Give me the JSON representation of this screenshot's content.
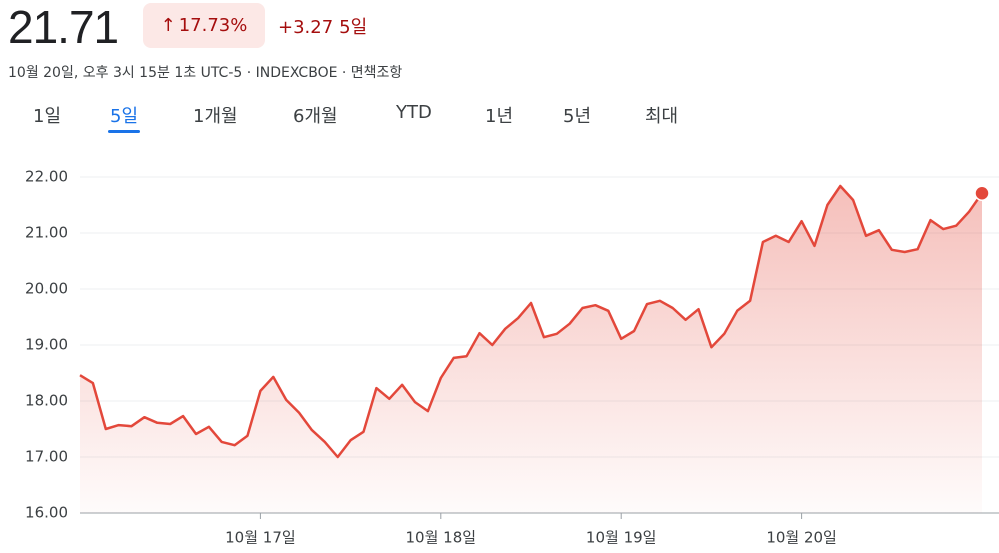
{
  "header": {
    "price": "21.71",
    "change_percent": "17.73%",
    "change": "+3.27",
    "period": "5일",
    "subtitle": "10월 20일, 오후 3시 15분 1초 UTC-5 · INDEXCBOE · 면책조항"
  },
  "tabs": {
    "items": [
      "1일",
      "5일",
      "1개월",
      "6개월",
      "YTD",
      "1년",
      "5년",
      "최대"
    ],
    "selected": 1
  },
  "chart_data": {
    "type": "line",
    "color": "#e3483b",
    "grid": true,
    "categories": [
      null,
      null,
      null,
      null,
      null,
      null,
      null,
      null,
      null,
      null,
      null,
      null,
      null,
      null,
      "10월 17일",
      null,
      null,
      null,
      null,
      null,
      null,
      null,
      null,
      null,
      null,
      null,
      null,
      null,
      "10월 18일",
      null,
      null,
      null,
      null,
      null,
      null,
      null,
      null,
      null,
      null,
      null,
      null,
      null,
      "10월 19일",
      null,
      null,
      null,
      null,
      null,
      null,
      null,
      null,
      null,
      null,
      null,
      null,
      null,
      "10월 20일",
      null,
      null,
      null,
      null,
      null,
      null,
      null,
      null,
      null,
      null,
      null,
      null,
      null,
      null
    ],
    "values": [
      18.46,
      18.32,
      17.5,
      17.57,
      17.55,
      17.71,
      17.61,
      17.59,
      17.73,
      17.41,
      17.54,
      17.27,
      17.21,
      17.38,
      18.18,
      18.43,
      18.02,
      17.79,
      17.48,
      17.27,
      17.0,
      17.3,
      17.45,
      18.23,
      18.04,
      18.29,
      17.98,
      17.82,
      18.41,
      18.77,
      18.8,
      19.21,
      19.0,
      19.29,
      19.48,
      19.75,
      19.14,
      19.2,
      19.38,
      19.66,
      19.71,
      19.61,
      19.11,
      19.25,
      19.73,
      19.79,
      19.66,
      19.45,
      19.64,
      18.96,
      19.2,
      19.61,
      19.79,
      20.84,
      20.95,
      20.84,
      21.21,
      20.77,
      21.5,
      21.84,
      21.59,
      20.95,
      21.05,
      20.7,
      20.66,
      20.71,
      21.23,
      21.07,
      21.13,
      21.38,
      21.71
    ],
    "ylim": [
      16,
      22.5
    ],
    "yticks": [
      {
        "value": 16,
        "label": "16.00"
      },
      {
        "value": 17,
        "label": "17.00"
      },
      {
        "value": 18,
        "label": "18.00"
      },
      {
        "value": 19,
        "label": "19.00"
      },
      {
        "value": 20,
        "label": "20.00"
      },
      {
        "value": 21,
        "label": "21.00"
      },
      {
        "value": 22,
        "label": "22.00"
      }
    ]
  }
}
